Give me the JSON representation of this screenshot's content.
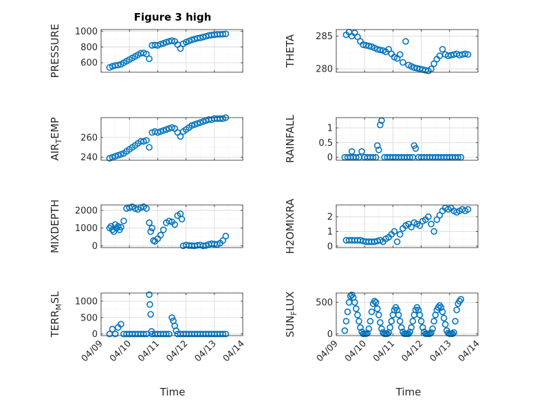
{
  "figure": {
    "title": "Figure 3 high",
    "xlabel": "Time"
  },
  "colors": {
    "marker": "#0072BD",
    "axis": "#262626",
    "grid": "#d9d9d9"
  },
  "x_ticks": [
    "04/09",
    "04/10",
    "04/11",
    "04/12",
    "04/13",
    "04/14"
  ],
  "chart_data": [
    {
      "type": "scatter",
      "ylabel": "PRESSURE",
      "ylim": [
        480,
        1020
      ],
      "yticks": [
        {
          "v": 600,
          "label": "600"
        },
        {
          "v": 800,
          "label": "800"
        },
        {
          "v": 1000,
          "label": "1000"
        }
      ],
      "xlim": [
        0,
        5
      ],
      "grid": true,
      "x": [
        0.3,
        0.4,
        0.5,
        0.6,
        0.7,
        0.8,
        0.9,
        1.0,
        1.1,
        1.2,
        1.3,
        1.4,
        1.5,
        1.6,
        1.7,
        1.8,
        1.9,
        2.0,
        2.1,
        2.2,
        2.3,
        2.4,
        2.5,
        2.6,
        2.7,
        2.8,
        2.9,
        3.0,
        3.1,
        3.2,
        3.3,
        3.4,
        3.5,
        3.6,
        3.7,
        3.8,
        3.9,
        4.0,
        4.1,
        4.2,
        4.3,
        4.4
      ],
      "y": [
        540,
        555,
        565,
        570,
        580,
        600,
        620,
        640,
        660,
        680,
        700,
        720,
        725,
        710,
        650,
        820,
        825,
        820,
        835,
        845,
        860,
        870,
        880,
        870,
        830,
        780,
        840,
        860,
        875,
        890,
        900,
        910,
        915,
        925,
        935,
        945,
        950,
        955,
        960,
        960,
        962,
        965
      ]
    },
    {
      "type": "scatter",
      "ylabel": "THETA",
      "ylim": [
        279.5,
        286
      ],
      "yticks": [
        {
          "v": 280,
          "label": "280"
        },
        {
          "v": 285,
          "label": "285"
        }
      ],
      "xlim": [
        0,
        5
      ],
      "grid": true,
      "x": [
        0.35,
        0.45,
        0.55,
        0.65,
        0.75,
        0.85,
        0.95,
        1.05,
        1.15,
        1.25,
        1.35,
        1.45,
        1.55,
        1.65,
        1.75,
        1.85,
        1.95,
        2.05,
        2.15,
        2.25,
        2.35,
        2.45,
        2.55,
        2.65,
        2.75,
        2.85,
        2.95,
        3.05,
        3.15,
        3.25,
        3.35,
        3.45,
        3.55,
        3.65,
        3.75,
        3.85,
        3.95,
        4.05,
        4.15,
        4.25,
        4.35,
        4.45,
        4.55,
        4.65
      ],
      "y": [
        285.2,
        285.6,
        285.0,
        285.5,
        284.9,
        284.2,
        283.7,
        283.6,
        283.5,
        283.4,
        283.2,
        283.0,
        282.9,
        282.8,
        282.6,
        283.0,
        282.3,
        281.8,
        281.6,
        282.2,
        281.0,
        284.2,
        280.6,
        280.4,
        280.2,
        280.1,
        280.0,
        279.9,
        279.8,
        279.7,
        280.0,
        280.8,
        281.5,
        282.0,
        283.0,
        282.2,
        282.0,
        282.1,
        282.2,
        282.3,
        282.1,
        282.2,
        282.3,
        282.2
      ]
    },
    {
      "type": "scatter",
      "ylabel": "AIR_TEMP",
      "ylim": [
        237,
        280
      ],
      "yticks": [
        {
          "v": 240,
          "label": "240"
        },
        {
          "v": 260,
          "label": "260"
        }
      ],
      "xlim": [
        0,
        5
      ],
      "grid": true,
      "x": [
        0.3,
        0.4,
        0.5,
        0.6,
        0.7,
        0.8,
        0.9,
        1.0,
        1.1,
        1.2,
        1.3,
        1.4,
        1.5,
        1.6,
        1.7,
        1.8,
        1.9,
        2.0,
        2.1,
        2.2,
        2.3,
        2.4,
        2.5,
        2.6,
        2.7,
        2.8,
        2.9,
        3.0,
        3.1,
        3.2,
        3.3,
        3.4,
        3.5,
        3.6,
        3.7,
        3.8,
        3.9,
        4.0,
        4.1,
        4.2,
        4.3,
        4.4
      ],
      "y": [
        239,
        240,
        241,
        242,
        243,
        244,
        246,
        248,
        250,
        252,
        254,
        256,
        256,
        257,
        250,
        265,
        266,
        265,
        266,
        267,
        268,
        269,
        270,
        269,
        265,
        261,
        266,
        268,
        270,
        272,
        273,
        274,
        275,
        276,
        277,
        278,
        278,
        279,
        279,
        279,
        279,
        280
      ]
    },
    {
      "type": "scatter",
      "ylabel": "RAINFALL",
      "ylim": [
        -0.1,
        1.35
      ],
      "yticks": [
        {
          "v": 0,
          "label": "0"
        },
        {
          "v": 0.5,
          "label": "0.5"
        },
        {
          "v": 1,
          "label": "1"
        }
      ],
      "xlim": [
        0,
        5
      ],
      "grid": true,
      "x": [
        0.3,
        0.4,
        0.5,
        0.55,
        0.6,
        0.7,
        0.8,
        0.9,
        1.0,
        1.1,
        1.2,
        1.3,
        1.4,
        1.45,
        1.5,
        1.55,
        1.6,
        1.7,
        1.8,
        1.9,
        2.0,
        2.1,
        2.2,
        2.3,
        2.4,
        2.5,
        2.6,
        2.7,
        2.75,
        2.8,
        2.9,
        3.0,
        3.1,
        3.2,
        3.3,
        3.4,
        3.5,
        3.6,
        3.7,
        3.8,
        3.9,
        4.0,
        4.1,
        4.2,
        4.3,
        4.4
      ],
      "y": [
        0,
        0,
        0,
        0.2,
        0,
        0,
        0,
        0.2,
        0,
        0,
        0,
        0,
        0,
        0.4,
        0.25,
        1.1,
        1.25,
        0,
        0,
        0,
        0,
        0,
        0,
        0,
        0,
        0,
        0,
        0,
        0.4,
        0.3,
        0,
        0,
        0,
        0,
        0,
        0,
        0,
        0,
        0,
        0,
        0,
        0,
        0,
        0,
        0,
        0
      ]
    },
    {
      "type": "scatter",
      "ylabel": "MIXDEPTH",
      "ylim": [
        -100,
        2300
      ],
      "yticks": [
        {
          "v": 0,
          "label": "0"
        },
        {
          "v": 1000,
          "label": "1000"
        },
        {
          "v": 2000,
          "label": "2000"
        }
      ],
      "xlim": [
        0,
        5
      ],
      "grid": true,
      "x": [
        0.3,
        0.35,
        0.4,
        0.45,
        0.5,
        0.55,
        0.6,
        0.65,
        0.7,
        0.8,
        0.9,
        1.0,
        1.1,
        1.2,
        1.3,
        1.4,
        1.5,
        1.6,
        1.7,
        1.75,
        1.8,
        1.85,
        1.9,
        2.0,
        2.1,
        2.2,
        2.3,
        2.4,
        2.5,
        2.6,
        2.7,
        2.8,
        2.85,
        2.9,
        3.0,
        3.1,
        3.2,
        3.3,
        3.4,
        3.5,
        3.6,
        3.7,
        3.8,
        3.9,
        4.0,
        4.1,
        4.2,
        4.3,
        4.4
      ],
      "y": [
        1000,
        1100,
        900,
        800,
        1200,
        1000,
        1100,
        900,
        1050,
        1400,
        2100,
        2150,
        2200,
        2100,
        2050,
        2150,
        2200,
        2100,
        1300,
        800,
        1000,
        300,
        250,
        400,
        600,
        900,
        1300,
        1400,
        1350,
        1200,
        1700,
        1800,
        1500,
        0,
        50,
        20,
        10,
        0,
        30,
        50,
        0,
        20,
        80,
        120,
        100,
        80,
        150,
        300,
        550
      ]
    },
    {
      "type": "scatter",
      "ylabel": "H2OMIXRA",
      "ylim": [
        -0.1,
        2.8
      ],
      "yticks": [
        {
          "v": 0,
          "label": "0"
        },
        {
          "v": 1,
          "label": "1"
        },
        {
          "v": 2,
          "label": "2"
        }
      ],
      "xlim": [
        0,
        5
      ],
      "grid": true,
      "x": [
        0.35,
        0.45,
        0.55,
        0.65,
        0.75,
        0.85,
        0.95,
        1.05,
        1.15,
        1.25,
        1.35,
        1.45,
        1.55,
        1.65,
        1.75,
        1.85,
        1.95,
        2.05,
        2.15,
        2.25,
        2.35,
        2.45,
        2.55,
        2.65,
        2.75,
        2.85,
        2.95,
        3.05,
        3.15,
        3.25,
        3.35,
        3.45,
        3.55,
        3.65,
        3.75,
        3.85,
        3.95,
        4.05,
        4.15,
        4.25,
        4.35,
        4.45,
        4.55,
        4.65
      ],
      "y": [
        0.4,
        0.4,
        0.4,
        0.4,
        0.4,
        0.4,
        0.35,
        0.3,
        0.3,
        0.3,
        0.3,
        0.35,
        0.4,
        0.3,
        0.5,
        0.6,
        0.8,
        1.0,
        0.3,
        0.8,
        1.2,
        1.4,
        1.5,
        1.3,
        1.6,
        1.5,
        1.4,
        1.7,
        1.8,
        2.0,
        1.5,
        1.0,
        1.8,
        2.1,
        2.4,
        2.6,
        2.5,
        2.6,
        2.4,
        2.3,
        2.4,
        2.5,
        2.4,
        2.5
      ]
    },
    {
      "type": "scatter",
      "ylabel": "TERR_MSL",
      "ylim": [
        -50,
        1250
      ],
      "yticks": [
        {
          "v": 0,
          "label": "0"
        },
        {
          "v": 500,
          "label": "500"
        },
        {
          "v": 1000,
          "label": "1000"
        }
      ],
      "xlim": [
        0,
        5
      ],
      "grid": true,
      "x": [
        0.3,
        0.4,
        0.5,
        0.6,
        0.7,
        0.8,
        0.9,
        1.0,
        1.1,
        1.2,
        1.3,
        1.4,
        1.5,
        1.6,
        1.7,
        1.72,
        1.75,
        1.78,
        1.8,
        1.9,
        2.0,
        2.1,
        2.2,
        2.3,
        2.4,
        2.5,
        2.55,
        2.6,
        2.65,
        2.7,
        2.8,
        2.9,
        3.0,
        3.1,
        3.2,
        3.3,
        3.4,
        3.5,
        3.6,
        3.7,
        3.8,
        3.9,
        4.0,
        4.1,
        4.2,
        4.3,
        4.4
      ],
      "y": [
        0,
        150,
        0,
        200,
        300,
        0,
        0,
        0,
        0,
        0,
        0,
        0,
        0,
        0,
        1200,
        900,
        600,
        80,
        0,
        0,
        0,
        0,
        0,
        0,
        0,
        500,
        400,
        250,
        100,
        0,
        0,
        0,
        0,
        0,
        0,
        0,
        0,
        0,
        0,
        0,
        0,
        0,
        0,
        0,
        0,
        0,
        0
      ]
    },
    {
      "type": "scatter",
      "ylabel": "SUN_FLUX",
      "ylim": [
        -30,
        650
      ],
      "yticks": [
        {
          "v": 0,
          "label": "0"
        },
        {
          "v": 500,
          "label": "500"
        }
      ],
      "xlim": [
        0,
        5
      ],
      "grid": true,
      "x": [
        0.3,
        0.35,
        0.4,
        0.45,
        0.5,
        0.55,
        0.6,
        0.65,
        0.7,
        0.75,
        0.8,
        0.85,
        0.9,
        0.95,
        1.0,
        1.05,
        1.1,
        1.15,
        1.2,
        1.25,
        1.3,
        1.35,
        1.4,
        1.45,
        1.5,
        1.55,
        1.6,
        1.65,
        1.7,
        1.75,
        1.8,
        1.85,
        1.9,
        1.95,
        2.0,
        2.05,
        2.1,
        2.15,
        2.2,
        2.25,
        2.3,
        2.35,
        2.4,
        2.45,
        2.5,
        2.55,
        2.6,
        2.65,
        2.7,
        2.75,
        2.8,
        2.85,
        2.9,
        2.95,
        3.0,
        3.05,
        3.1,
        3.15,
        3.2,
        3.25,
        3.3,
        3.35,
        3.4,
        3.45,
        3.5,
        3.55,
        3.6,
        3.65,
        3.7,
        3.75,
        3.8,
        3.85,
        3.9,
        3.95,
        4.0,
        4.05,
        4.1,
        4.15,
        4.2,
        4.25,
        4.3,
        4.35,
        4.4
      ],
      "y": [
        50,
        200,
        350,
        500,
        600,
        620,
        580,
        500,
        400,
        300,
        200,
        100,
        30,
        0,
        0,
        0,
        10,
        80,
        200,
        350,
        480,
        520,
        500,
        400,
        300,
        180,
        80,
        20,
        0,
        0,
        0,
        20,
        100,
        200,
        300,
        380,
        420,
        380,
        300,
        200,
        100,
        30,
        0,
        0,
        0,
        0,
        30,
        100,
        200,
        300,
        380,
        420,
        380,
        300,
        200,
        100,
        30,
        0,
        0,
        0,
        0,
        20,
        80,
        200,
        300,
        380,
        420,
        450,
        420,
        350,
        250,
        150,
        50,
        10,
        0,
        0,
        0,
        20,
        200,
        380,
        480,
        520,
        550
      ]
    }
  ]
}
